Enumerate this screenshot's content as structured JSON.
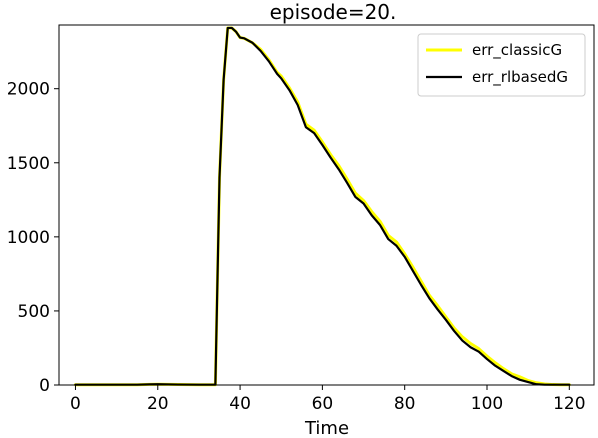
{
  "chart_data": {
    "type": "line",
    "title": "episode=20.",
    "xlabel": "Time",
    "ylabel": "",
    "xlim": [
      -4,
      126
    ],
    "ylim": [
      0,
      2430
    ],
    "xticks": [
      0,
      20,
      40,
      60,
      80,
      100,
      120
    ],
    "yticks": [
      0,
      500,
      1000,
      1500,
      2000
    ],
    "grid": false,
    "legend_position": "top-right",
    "series": [
      {
        "name": "err_classicG",
        "color": "#ffff00",
        "x": [
          0,
          5,
          10,
          15,
          18,
          20,
          25,
          30,
          34,
          35,
          36,
          37,
          38,
          39,
          40,
          41,
          43,
          45,
          47,
          49,
          50,
          52,
          54,
          56,
          58,
          60,
          62,
          64,
          66,
          68,
          70,
          72,
          74,
          76,
          78,
          80,
          82,
          84,
          86,
          88,
          90,
          92,
          94,
          96,
          98,
          100,
          102,
          104,
          106,
          108,
          110,
          112,
          114,
          116,
          118,
          120
        ],
        "y": [
          2,
          2,
          2,
          2,
          4,
          5,
          3,
          2,
          2,
          1400,
          2060,
          2410,
          2410,
          2385,
          2345,
          2340,
          2310,
          2265,
          2195,
          2110,
          2085,
          2005,
          1910,
          1760,
          1720,
          1640,
          1555,
          1480,
          1390,
          1295,
          1245,
          1170,
          1105,
          1010,
          965,
          885,
          795,
          700,
          605,
          535,
          460,
          385,
          325,
          280,
          245,
          195,
          150,
          110,
          75,
          55,
          30,
          15,
          7,
          3,
          2,
          2
        ]
      },
      {
        "name": "err_rlbasedG",
        "color": "#000000",
        "x": [
          0,
          5,
          10,
          15,
          18,
          20,
          25,
          30,
          34,
          35,
          36,
          37,
          38,
          39,
          40,
          41,
          43,
          45,
          47,
          49,
          50,
          52,
          54,
          56,
          58,
          60,
          62,
          64,
          66,
          68,
          70,
          72,
          74,
          76,
          78,
          80,
          82,
          84,
          86,
          88,
          90,
          92,
          94,
          96,
          98,
          100,
          102,
          104,
          106,
          108,
          110,
          112,
          114,
          116,
          118,
          120
        ],
        "y": [
          2,
          2,
          2,
          2,
          4,
          5,
          3,
          2,
          2,
          1400,
          2060,
          2410,
          2410,
          2385,
          2345,
          2340,
          2310,
          2255,
          2185,
          2100,
          2070,
          1990,
          1890,
          1740,
          1700,
          1620,
          1535,
          1455,
          1365,
          1270,
          1225,
          1145,
          1080,
          985,
          940,
          865,
          770,
          675,
          585,
          510,
          440,
          365,
          300,
          255,
          225,
          175,
          130,
          95,
          60,
          35,
          20,
          5,
          2,
          2,
          2,
          2
        ]
      }
    ]
  }
}
